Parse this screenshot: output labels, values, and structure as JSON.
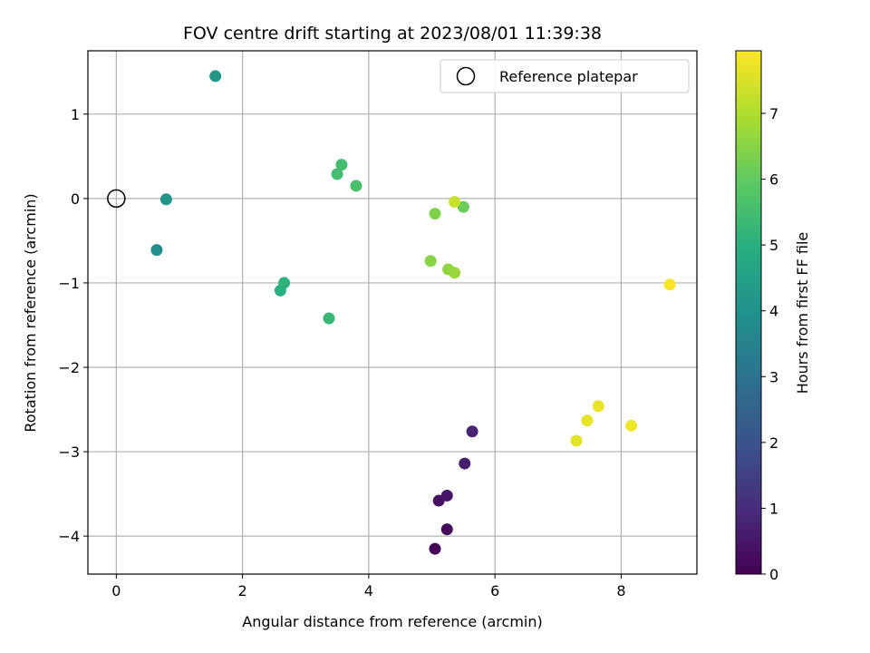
{
  "chart_data": {
    "type": "scatter",
    "title": "FOV centre drift starting at 2023/08/01 11:39:38",
    "xlabel": "Angular distance from reference (arcmin)",
    "ylabel": "Rotation from reference (arcmin)",
    "xlim": [
      -0.45,
      9.2
    ],
    "ylim": [
      -4.45,
      1.75
    ],
    "xticks": [
      0,
      2,
      4,
      6,
      8
    ],
    "yticks": [
      -4,
      -3,
      -2,
      -1,
      0,
      1
    ],
    "grid": true,
    "legend": {
      "placement": "top-right",
      "entries": [
        {
          "label": "Reference platepar",
          "marker": "open-circle"
        }
      ]
    },
    "reference_point": {
      "x": 0,
      "y": 0
    },
    "colorbar": {
      "label": "Hours from first FF file",
      "colormap": "viridis",
      "range": [
        0,
        7.95
      ],
      "ticks": [
        0,
        1,
        2,
        3,
        4,
        5,
        6,
        7
      ]
    },
    "points": [
      {
        "x": 5.05,
        "y": -4.15,
        "hours": 0.05
      },
      {
        "x": 5.24,
        "y": -3.92,
        "hours": 0.2
      },
      {
        "x": 5.11,
        "y": -3.58,
        "hours": 0.35
      },
      {
        "x": 5.24,
        "y": -3.52,
        "hours": 0.5
      },
      {
        "x": 5.52,
        "y": -3.14,
        "hours": 0.65
      },
      {
        "x": 5.64,
        "y": -2.76,
        "hours": 0.8
      },
      {
        "x": 0.64,
        "y": -0.61,
        "hours": 3.9
      },
      {
        "x": 0.79,
        "y": -0.01,
        "hours": 4.1
      },
      {
        "x": 1.57,
        "y": 1.45,
        "hours": 4.2
      },
      {
        "x": 2.6,
        "y": -1.09,
        "hours": 5.0
      },
      {
        "x": 2.66,
        "y": -1.0,
        "hours": 5.1
      },
      {
        "x": 3.37,
        "y": -1.42,
        "hours": 5.3
      },
      {
        "x": 3.57,
        "y": 0.4,
        "hours": 5.5
      },
      {
        "x": 3.5,
        "y": 0.29,
        "hours": 5.5
      },
      {
        "x": 3.8,
        "y": 0.15,
        "hours": 5.6
      },
      {
        "x": 5.5,
        "y": -0.1,
        "hours": 6.1
      },
      {
        "x": 5.05,
        "y": -0.18,
        "hours": 6.4
      },
      {
        "x": 4.98,
        "y": -0.74,
        "hours": 6.5
      },
      {
        "x": 5.26,
        "y": -0.84,
        "hours": 6.6
      },
      {
        "x": 5.36,
        "y": -0.88,
        "hours": 6.7
      },
      {
        "x": 5.36,
        "y": -0.04,
        "hours": 7.3
      },
      {
        "x": 7.29,
        "y": -2.87,
        "hours": 7.6
      },
      {
        "x": 7.46,
        "y": -2.63,
        "hours": 7.65
      },
      {
        "x": 7.64,
        "y": -2.46,
        "hours": 7.7
      },
      {
        "x": 8.16,
        "y": -2.69,
        "hours": 7.8
      },
      {
        "x": 8.77,
        "y": -1.02,
        "hours": 7.9
      }
    ]
  }
}
